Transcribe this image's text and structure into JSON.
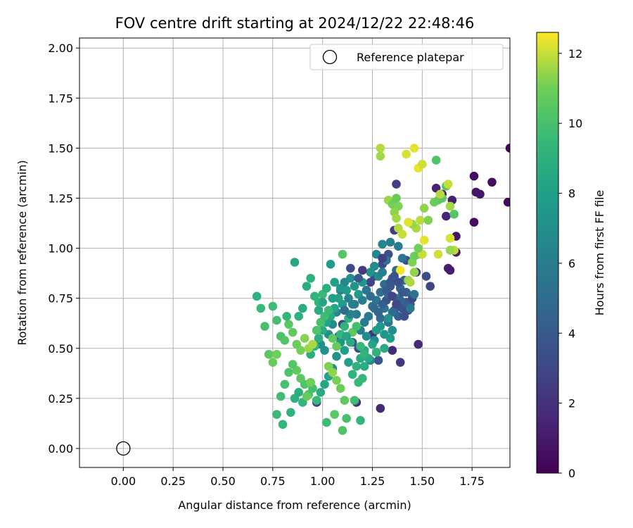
{
  "chart_data": {
    "type": "scatter",
    "title": "FOV centre drift starting at 2024/12/22 22:48:46",
    "xlabel": "Angular distance from reference (arcmin)",
    "ylabel": "Rotation from reference (arcmin)",
    "xlim": [
      -0.22,
      1.94
    ],
    "ylim": [
      -0.095,
      2.05
    ],
    "grid": true,
    "xticks": [
      "0.00",
      "0.25",
      "0.50",
      "0.75",
      "1.00",
      "1.25",
      "1.50",
      "1.75"
    ],
    "yticks": [
      "0.00",
      "0.25",
      "0.50",
      "0.75",
      "1.00",
      "1.25",
      "1.50",
      "1.75",
      "2.00"
    ],
    "xtick_values": [
      0,
      0.25,
      0.5,
      0.75,
      1.0,
      1.25,
      1.5,
      1.75
    ],
    "ytick_values": [
      0,
      0.25,
      0.5,
      0.75,
      1.0,
      1.25,
      1.5,
      1.75,
      2.0
    ],
    "colormap": "viridis",
    "colorbar": {
      "label": "Hours from first FF file",
      "range": [
        0,
        12.6
      ],
      "ticks": [
        "0",
        "2",
        "4",
        "6",
        "8",
        "10",
        "12"
      ],
      "tick_values": [
        0,
        2,
        4,
        6,
        8,
        10,
        12
      ]
    },
    "legend": {
      "placement": "upper-right",
      "entries": [
        "Reference platepar"
      ]
    },
    "reference_point": {
      "x": 0.0,
      "y": 0.0
    },
    "points": [
      [
        1.76,
        1.36,
        0.5
      ],
      [
        1.85,
        1.33,
        0.6
      ],
      [
        1.93,
        1.23,
        0.3
      ],
      [
        1.94,
        1.5,
        0.2
      ],
      [
        1.77,
        1.28,
        0.8
      ],
      [
        1.79,
        1.27,
        0.9
      ],
      [
        1.76,
        1.13,
        0.5
      ],
      [
        1.65,
        1.24,
        1.2
      ],
      [
        1.67,
        1.06,
        0.8
      ],
      [
        1.62,
        1.16,
        1.5
      ],
      [
        1.57,
        1.3,
        1.3
      ],
      [
        1.6,
        1.27,
        1.2
      ],
      [
        1.63,
        0.9,
        1.3
      ],
      [
        1.64,
        0.89,
        1.1
      ],
      [
        1.67,
        0.98,
        1.0
      ],
      [
        1.48,
        0.52,
        1.6
      ],
      [
        1.35,
        0.49,
        1.7
      ],
      [
        1.29,
        0.2,
        1.6
      ],
      [
        1.39,
        0.43,
        2.3
      ],
      [
        1.25,
        0.57,
        1.9
      ],
      [
        1.17,
        0.23,
        2.1
      ],
      [
        1.37,
        1.32,
        2.7
      ],
      [
        1.36,
        1.09,
        2.5
      ],
      [
        1.54,
        0.81,
        2.9
      ],
      [
        1.52,
        0.86,
        3.3
      ],
      [
        1.47,
        0.88,
        2.6
      ],
      [
        1.42,
        0.94,
        3.1
      ],
      [
        1.33,
        0.97,
        3.4
      ],
      [
        1.28,
        0.44,
        3.8
      ],
      [
        1.18,
        0.5,
        3.5
      ],
      [
        1.15,
        0.53,
        3.2
      ],
      [
        1.1,
        0.62,
        3.0
      ],
      [
        1.08,
        0.56,
        3.4
      ],
      [
        0.97,
        0.23,
        2.8
      ],
      [
        1.22,
        0.79,
        2.6
      ],
      [
        1.24,
        0.83,
        2.9
      ],
      [
        1.26,
        0.86,
        3.1
      ],
      [
        1.3,
        0.92,
        3.2
      ],
      [
        1.32,
        0.74,
        3.6
      ],
      [
        1.34,
        0.81,
        3.9
      ],
      [
        1.36,
        0.69,
        4.1
      ],
      [
        1.38,
        0.66,
        4.3
      ],
      [
        1.4,
        0.7,
        3.7
      ],
      [
        1.42,
        0.78,
        4.5
      ],
      [
        1.44,
        0.72,
        4.0
      ],
      [
        1.33,
        0.77,
        4.7
      ],
      [
        1.35,
        0.85,
        4.2
      ],
      [
        1.37,
        0.89,
        4.8
      ],
      [
        1.31,
        0.82,
        5.0
      ],
      [
        1.29,
        0.78,
        5.2
      ],
      [
        1.27,
        0.74,
        5.5
      ],
      [
        1.25,
        0.71,
        5.3
      ],
      [
        1.23,
        0.66,
        5.7
      ],
      [
        1.21,
        0.63,
        5.9
      ],
      [
        1.19,
        0.59,
        6.1
      ],
      [
        1.17,
        0.67,
        5.8
      ],
      [
        1.15,
        0.72,
        6.0
      ],
      [
        1.13,
        0.75,
        6.3
      ],
      [
        1.11,
        0.83,
        6.5
      ],
      [
        1.09,
        0.79,
        6.2
      ],
      [
        1.07,
        0.68,
        6.6
      ],
      [
        1.05,
        0.62,
        6.8
      ],
      [
        1.03,
        0.57,
        7.0
      ],
      [
        1.01,
        0.49,
        7.1
      ],
      [
        0.99,
        0.52,
        6.9
      ],
      [
        1.29,
        0.65,
        5.1
      ],
      [
        1.31,
        0.7,
        5.4
      ],
      [
        1.33,
        0.63,
        5.6
      ],
      [
        1.35,
        0.68,
        5.0
      ],
      [
        1.37,
        0.75,
        5.8
      ],
      [
        1.39,
        0.8,
        4.6
      ],
      [
        1.41,
        0.84,
        4.4
      ],
      [
        1.3,
        1.02,
        6.4
      ],
      [
        1.34,
        1.03,
        6.1
      ],
      [
        1.38,
        1.01,
        5.9
      ],
      [
        1.4,
        0.95,
        5.5
      ],
      [
        1.28,
        0.86,
        6.7
      ],
      [
        1.26,
        0.91,
        6.9
      ],
      [
        1.24,
        0.88,
        7.2
      ],
      [
        1.2,
        0.83,
        7.4
      ],
      [
        1.18,
        0.77,
        7.6
      ],
      [
        1.16,
        0.81,
        7.3
      ],
      [
        1.14,
        0.85,
        7.0
      ],
      [
        1.12,
        0.79,
        7.7
      ],
      [
        1.1,
        0.72,
        7.9
      ],
      [
        1.08,
        0.75,
        8.1
      ],
      [
        1.06,
        0.7,
        8.3
      ],
      [
        1.04,
        0.66,
        8.5
      ],
      [
        1.02,
        0.63,
        8.2
      ],
      [
        1.0,
        0.59,
        8.7
      ],
      [
        0.98,
        0.55,
        8.9
      ],
      [
        0.96,
        0.51,
        9.1
      ],
      [
        0.94,
        0.47,
        8.8
      ],
      [
        1.21,
        0.49,
        8.4
      ],
      [
        1.19,
        0.45,
        8.6
      ],
      [
        1.17,
        0.41,
        9.0
      ],
      [
        1.15,
        0.37,
        9.2
      ],
      [
        1.13,
        0.43,
        8.0
      ],
      [
        1.11,
        0.49,
        7.8
      ],
      [
        1.09,
        0.53,
        7.5
      ],
      [
        1.07,
        0.46,
        7.3
      ],
      [
        1.05,
        0.4,
        7.1
      ],
      [
        1.03,
        0.36,
        8.2
      ],
      [
        1.01,
        0.32,
        8.4
      ],
      [
        0.99,
        0.28,
        8.6
      ],
      [
        1.22,
        0.56,
        7.0
      ],
      [
        1.26,
        0.54,
        6.8
      ],
      [
        1.24,
        0.44,
        6.5
      ],
      [
        1.2,
        0.35,
        9.4
      ],
      [
        1.18,
        0.33,
        9.6
      ],
      [
        1.16,
        0.24,
        9.8
      ],
      [
        1.19,
        0.14,
        9.3
      ],
      [
        1.12,
        0.15,
        10.0
      ],
      [
        1.1,
        0.09,
        10.2
      ],
      [
        1.02,
        0.13,
        9.7
      ],
      [
        0.97,
        0.24,
        9.5
      ],
      [
        0.95,
        0.3,
        9.9
      ],
      [
        0.93,
        0.27,
        10.1
      ],
      [
        0.91,
        0.32,
        10.3
      ],
      [
        0.89,
        0.35,
        10.5
      ],
      [
        0.87,
        0.39,
        10.7
      ],
      [
        0.85,
        0.42,
        10.4
      ],
      [
        0.83,
        0.38,
        10.2
      ],
      [
        0.81,
        0.32,
        10.0
      ],
      [
        0.79,
        0.26,
        9.8
      ],
      [
        0.77,
        0.17,
        9.6
      ],
      [
        0.8,
        0.12,
        9.4
      ],
      [
        0.84,
        0.18,
        9.2
      ],
      [
        0.86,
        0.25,
        9.0
      ],
      [
        0.88,
        0.28,
        8.8
      ],
      [
        0.9,
        0.23,
        9.3
      ],
      [
        0.92,
        0.26,
        10.8
      ],
      [
        0.94,
        0.33,
        11.0
      ],
      [
        1.03,
        0.41,
        11.2
      ],
      [
        1.05,
        0.38,
        11.4
      ],
      [
        1.07,
        0.34,
        11.1
      ],
      [
        1.09,
        0.3,
        10.9
      ],
      [
        1.11,
        0.24,
        10.6
      ],
      [
        1.06,
        0.17,
        10.5
      ],
      [
        0.67,
        0.76,
        9.0
      ],
      [
        0.69,
        0.7,
        9.5
      ],
      [
        0.71,
        0.61,
        10.0
      ],
      [
        0.73,
        0.47,
        10.5
      ],
      [
        0.75,
        0.43,
        10.8
      ],
      [
        0.77,
        0.47,
        11.0
      ],
      [
        0.75,
        0.71,
        9.7
      ],
      [
        0.77,
        0.64,
        9.9
      ],
      [
        0.79,
        0.56,
        10.1
      ],
      [
        0.81,
        0.54,
        10.3
      ],
      [
        0.83,
        0.62,
        10.5
      ],
      [
        0.85,
        0.58,
        10.7
      ],
      [
        0.87,
        0.52,
        10.9
      ],
      [
        0.89,
        0.49,
        11.1
      ],
      [
        0.91,
        0.55,
        11.3
      ],
      [
        0.93,
        0.5,
        11.5
      ],
      [
        0.95,
        0.52,
        11.7
      ],
      [
        0.82,
        0.66,
        9.4
      ],
      [
        0.86,
        0.93,
        8.4
      ],
      [
        0.88,
        0.66,
        9.0
      ],
      [
        0.9,
        0.7,
        8.6
      ],
      [
        0.92,
        0.81,
        8.8
      ],
      [
        0.94,
        0.85,
        9.0
      ],
      [
        0.96,
        0.76,
        9.2
      ],
      [
        0.98,
        0.73,
        9.4
      ],
      [
        1.0,
        0.77,
        9.6
      ],
      [
        1.02,
        0.8,
        8.9
      ],
      [
        1.04,
        0.92,
        7.8
      ],
      [
        1.06,
        0.83,
        8.1
      ],
      [
        1.1,
        0.97,
        10.4
      ],
      [
        0.97,
        0.59,
        10.2
      ],
      [
        0.99,
        0.63,
        10.0
      ],
      [
        1.01,
        0.66,
        9.8
      ],
      [
        1.03,
        0.69,
        9.6
      ],
      [
        1.05,
        0.55,
        10.6
      ],
      [
        1.07,
        0.51,
        10.8
      ],
      [
        1.09,
        0.57,
        9.4
      ],
      [
        1.11,
        0.61,
        9.2
      ],
      [
        1.13,
        0.65,
        9.0
      ],
      [
        1.15,
        0.58,
        10.6
      ],
      [
        1.17,
        0.61,
        9.9
      ],
      [
        1.19,
        0.51,
        9.5
      ],
      [
        1.21,
        0.41,
        8.8
      ],
      [
        1.23,
        0.45,
        8.5
      ],
      [
        1.25,
        0.52,
        8.2
      ],
      [
        1.27,
        0.59,
        7.9
      ],
      [
        1.29,
        0.61,
        7.6
      ],
      [
        1.31,
        0.57,
        7.4
      ],
      [
        1.33,
        0.65,
        7.2
      ],
      [
        1.35,
        0.59,
        7.0
      ],
      [
        1.29,
        1.5,
        11.8
      ],
      [
        1.29,
        1.46,
        11.6
      ],
      [
        1.33,
        1.24,
        11.5
      ],
      [
        1.35,
        1.22,
        11.0
      ],
      [
        1.37,
        1.25,
        10.8
      ],
      [
        1.38,
        1.21,
        11.2
      ],
      [
        1.36,
        1.18,
        11.4
      ],
      [
        1.37,
        1.15,
        11.6
      ],
      [
        1.38,
        1.1,
        11.8
      ],
      [
        1.4,
        1.07,
        12.0
      ],
      [
        1.39,
        0.89,
        12.5
      ],
      [
        1.43,
        0.84,
        11.5
      ],
      [
        1.45,
        0.93,
        11.2
      ],
      [
        1.46,
        0.96,
        11.0
      ],
      [
        1.48,
        0.97,
        10.8
      ],
      [
        1.42,
        1.47,
        12.2
      ],
      [
        1.46,
        1.5,
        12.3
      ],
      [
        1.48,
        1.4,
        12.4
      ],
      [
        1.5,
        1.42,
        12.1
      ],
      [
        1.49,
        1.14,
        11.9
      ],
      [
        1.47,
        1.1,
        11.7
      ],
      [
        1.45,
        1.12,
        11.5
      ],
      [
        1.43,
        1.13,
        12.3
      ],
      [
        1.51,
        1.2,
        11.4
      ],
      [
        1.53,
        1.14,
        11.2
      ],
      [
        1.56,
        1.23,
        11.0
      ],
      [
        1.58,
        1.24,
        10.8
      ],
      [
        1.6,
        1.25,
        10.6
      ],
      [
        1.62,
        1.31,
        10.4
      ],
      [
        1.63,
        1.32,
        12.0
      ],
      [
        1.57,
        1.44,
        10.2
      ],
      [
        1.59,
        1.27,
        11.8
      ],
      [
        1.64,
        1.21,
        11.6
      ],
      [
        1.66,
        1.17,
        10.4
      ],
      [
        1.64,
        1.05,
        12.2
      ],
      [
        1.66,
        0.99,
        11.9
      ],
      [
        1.64,
        0.99,
        11.5
      ],
      [
        1.58,
        0.97,
        12.1
      ],
      [
        1.51,
        1.04,
        12.3
      ],
      [
        1.5,
        0.97,
        12.0
      ],
      [
        1.46,
        0.88,
        11.4
      ],
      [
        1.44,
        0.83,
        11.7
      ],
      [
        1.48,
        1.0,
        11.1
      ],
      [
        1.34,
        0.55,
        7.9
      ],
      [
        1.31,
        0.5,
        8.6
      ],
      [
        1.27,
        0.48,
        9.0
      ],
      [
        1.21,
        0.47,
        9.2
      ],
      [
        1.14,
        0.53,
        8.7
      ],
      [
        1.12,
        0.56,
        8.3
      ],
      [
        1.14,
        0.67,
        6.4
      ],
      [
        1.16,
        0.72,
        6.2
      ],
      [
        1.2,
        0.74,
        5.9
      ],
      [
        1.22,
        0.79,
        5.6
      ],
      [
        1.24,
        0.76,
        5.1
      ],
      [
        1.26,
        0.7,
        4.9
      ],
      [
        1.28,
        0.68,
        4.6
      ],
      [
        1.3,
        0.72,
        4.3
      ],
      [
        1.32,
        0.79,
        4.1
      ],
      [
        1.34,
        0.83,
        3.8
      ],
      [
        1.36,
        0.86,
        3.6
      ],
      [
        1.38,
        0.83,
        3.4
      ],
      [
        1.4,
        0.78,
        3.9
      ],
      [
        1.42,
        0.73,
        4.2
      ],
      [
        1.39,
        0.74,
        4.4
      ],
      [
        1.41,
        0.66,
        3.5
      ],
      [
        1.43,
        0.69,
        3.3
      ],
      [
        1.37,
        0.72,
        3.1
      ],
      [
        1.35,
        0.76,
        2.9
      ],
      [
        1.45,
        0.75,
        3.0
      ],
      [
        1.46,
        0.77,
        5.5
      ],
      [
        1.44,
        0.7,
        5.8
      ],
      [
        1.3,
        0.88,
        6.0
      ],
      [
        1.32,
        0.94,
        5.4
      ],
      [
        1.27,
        0.97,
        6.6
      ],
      [
        1.3,
        0.95,
        2.6
      ],
      [
        1.2,
        0.89,
        2.4
      ],
      [
        1.14,
        0.9,
        3.2
      ],
      [
        1.18,
        0.85,
        4.0
      ],
      [
        1.09,
        0.8,
        7.6
      ],
      [
        1.05,
        0.75,
        8.0
      ],
      [
        1.0,
        0.73,
        8.4
      ],
      [
        0.98,
        0.69,
        8.6
      ],
      [
        1.11,
        0.69,
        5.2
      ]
    ]
  }
}
